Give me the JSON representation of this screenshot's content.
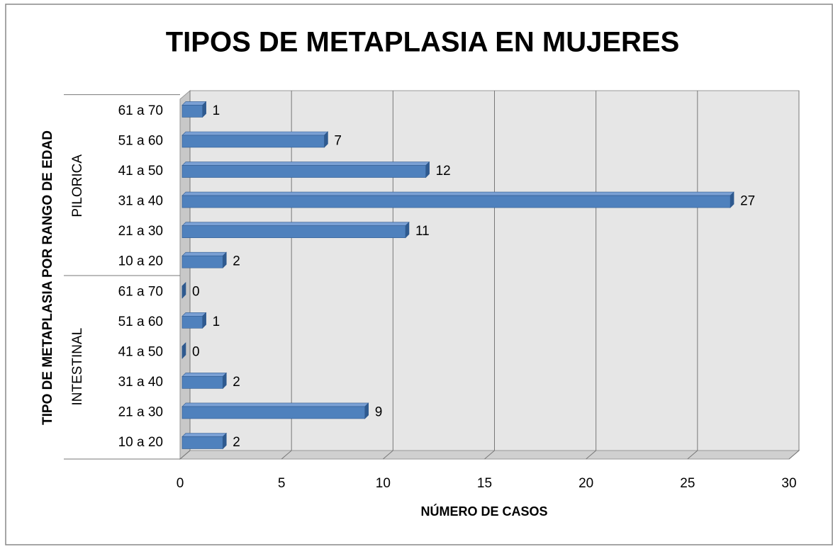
{
  "chart_data": {
    "type": "bar",
    "orientation": "horizontal",
    "title": "TIPOS DE METAPLASIA EN MUJERES",
    "xlabel": "NÚMERO DE CASOS",
    "ylabel": "TIPO DE METAPLASIA POR RANGO DE EDAD",
    "groups": [
      {
        "name": "INTESTINAL",
        "categories": [
          "10 a 20",
          "21 a 30",
          "31 a 40",
          "41 a 50",
          "51 a 60",
          "61 a 70"
        ],
        "values": [
          2,
          9,
          2,
          0,
          1,
          0
        ]
      },
      {
        "name": "PILORICA",
        "categories": [
          "10 a 20",
          "21 a 30",
          "31 a 40",
          "41 a 50",
          "51 a 60",
          "61 a 70"
        ],
        "values": [
          2,
          11,
          27,
          12,
          7,
          1
        ]
      }
    ],
    "color": "#4f81bd",
    "xlim": [
      0,
      30
    ],
    "xticks": [
      0,
      5,
      10,
      15,
      20,
      25,
      30
    ],
    "grid": true
  }
}
